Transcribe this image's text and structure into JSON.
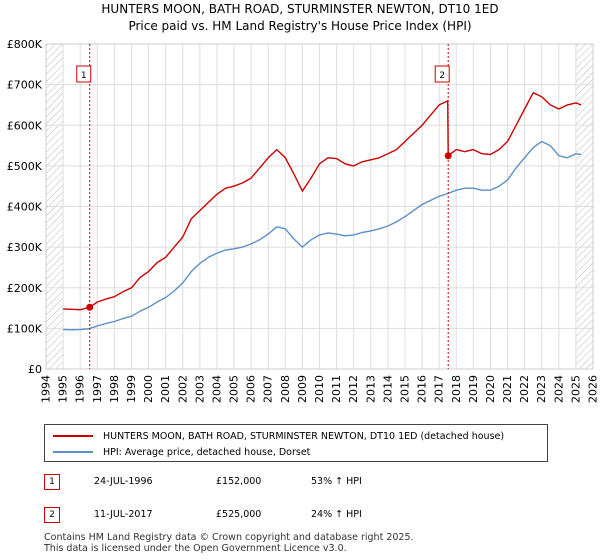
{
  "chart_data": {
    "type": "line",
    "title": "HUNTERS MOON, BATH ROAD, STURMINSTER NEWTON, DT10 1ED",
    "subtitle": "Price paid vs. HM Land Registry's House Price Index (HPI)",
    "xlabel": "",
    "ylabel": "",
    "xlim": [
      1994,
      2026
    ],
    "ylim": [
      0,
      800000
    ],
    "x_ticks": [
      "1994",
      "1995",
      "1996",
      "1997",
      "1998",
      "1999",
      "2000",
      "2001",
      "2002",
      "2003",
      "2004",
      "2005",
      "2006",
      "2007",
      "2008",
      "2009",
      "2010",
      "2011",
      "2012",
      "2013",
      "2014",
      "2015",
      "2016",
      "2017",
      "2018",
      "2019",
      "2020",
      "2021",
      "2022",
      "2023",
      "2024",
      "2025",
      "2026"
    ],
    "y_ticks": [
      {
        "value": 0,
        "label": "£0"
      },
      {
        "value": 100000,
        "label": "£100K"
      },
      {
        "value": 200000,
        "label": "£200K"
      },
      {
        "value": 300000,
        "label": "£300K"
      },
      {
        "value": 400000,
        "label": "£400K"
      },
      {
        "value": 500000,
        "label": "£500K"
      },
      {
        "value": 600000,
        "label": "£600K"
      },
      {
        "value": 700000,
        "label": "£700K"
      },
      {
        "value": 800000,
        "label": "£800K"
      }
    ],
    "grid": true,
    "hatched_regions": [
      [
        1994,
        1995
      ],
      [
        2025,
        2026
      ]
    ],
    "series": [
      {
        "name": "HUNTERS MOON, BATH ROAD, STURMINSTER NEWTON, DT10 1ED (detached house)",
        "color": "#cc0000",
        "x": [
          1995,
          1995.5,
          1996,
          1996.56,
          1997,
          1997.5,
          1998,
          1998.5,
          1999,
          1999.5,
          2000,
          2000.5,
          2001,
          2001.5,
          2002,
          2002.5,
          2003,
          2003.5,
          2004,
          2004.5,
          2005,
          2005.5,
          2006,
          2006.5,
          2007,
          2007.5,
          2008,
          2008.5,
          2009,
          2009.5,
          2010,
          2010.5,
          2011,
          2011.5,
          2012,
          2012.5,
          2013,
          2013.5,
          2014,
          2014.5,
          2015,
          2015.5,
          2016,
          2016.5,
          2017,
          2017.5,
          2017.53,
          2018,
          2018.5,
          2019,
          2019.5,
          2020,
          2020.5,
          2021,
          2021.5,
          2022,
          2022.5,
          2023,
          2023.5,
          2024,
          2024.5,
          2025,
          2025.3
        ],
        "values": [
          148000,
          147000,
          146000,
          152000,
          165000,
          172000,
          178000,
          190000,
          200000,
          225000,
          240000,
          262000,
          275000,
          300000,
          325000,
          370000,
          390000,
          410000,
          430000,
          445000,
          450000,
          458000,
          470000,
          495000,
          520000,
          540000,
          520000,
          480000,
          438000,
          470000,
          505000,
          520000,
          518000,
          505000,
          500000,
          510000,
          515000,
          520000,
          530000,
          540000,
          560000,
          580000,
          600000,
          625000,
          650000,
          660000,
          525000,
          540000,
          535000,
          540000,
          530000,
          528000,
          540000,
          560000,
          600000,
          640000,
          680000,
          670000,
          650000,
          640000,
          650000,
          655000,
          650000
        ]
      },
      {
        "name": "HPI: Average price, detached house, Dorset",
        "color": "#5b8fc8",
        "x": [
          1995,
          1995.5,
          1996,
          1996.5,
          1997,
          1997.5,
          1998,
          1998.5,
          1999,
          1999.5,
          2000,
          2000.5,
          2001,
          2001.5,
          2002,
          2002.5,
          2003,
          2003.5,
          2004,
          2004.5,
          2005,
          2005.5,
          2006,
          2006.5,
          2007,
          2007.5,
          2008,
          2008.5,
          2009,
          2009.5,
          2010,
          2010.5,
          2011,
          2011.5,
          2012,
          2012.5,
          2013,
          2013.5,
          2014,
          2014.5,
          2015,
          2015.5,
          2016,
          2016.5,
          2017,
          2017.5,
          2018,
          2018.5,
          2019,
          2019.5,
          2020,
          2020.5,
          2021,
          2021.5,
          2022,
          2022.5,
          2023,
          2023.5,
          2024,
          2024.5,
          2025,
          2025.3
        ],
        "values": [
          97000,
          96500,
          97000,
          99000,
          106000,
          112000,
          117000,
          124000,
          130000,
          142000,
          152000,
          165000,
          176000,
          192000,
          212000,
          240000,
          260000,
          275000,
          285000,
          293000,
          296000,
          300000,
          308000,
          318000,
          332000,
          350000,
          345000,
          320000,
          300000,
          318000,
          330000,
          335000,
          332000,
          328000,
          330000,
          336000,
          340000,
          345000,
          352000,
          362000,
          375000,
          390000,
          405000,
          415000,
          425000,
          432000,
          440000,
          445000,
          445000,
          440000,
          440000,
          450000,
          465000,
          495000,
          520000,
          545000,
          560000,
          550000,
          525000,
          520000,
          530000,
          528000
        ]
      }
    ],
    "sales": [
      {
        "label": "1",
        "x": 1996.56,
        "value": 152000
      },
      {
        "label": "2",
        "x": 2017.53,
        "value": 525000
      }
    ]
  },
  "legend": {
    "property": "HUNTERS MOON, BATH ROAD, STURMINSTER NEWTON, DT10 1ED (detached house)",
    "hpi": "HPI: Average price, detached house, Dorset"
  },
  "sales_table": [
    {
      "num": "1",
      "date": "24-JUL-1996",
      "price": "£152,000",
      "hpi": "53% ↑ HPI"
    },
    {
      "num": "2",
      "date": "11-JUL-2017",
      "price": "£525,000",
      "hpi": "24% ↑ HPI"
    }
  ],
  "footer": {
    "line1": "Contains HM Land Registry data © Crown copyright and database right 2025.",
    "line2": "This data is licensed under the Open Government Licence v3.0."
  },
  "colors": {
    "property": "#cc0000",
    "hpi": "#5b8fc8",
    "grid": "#dddddd"
  }
}
